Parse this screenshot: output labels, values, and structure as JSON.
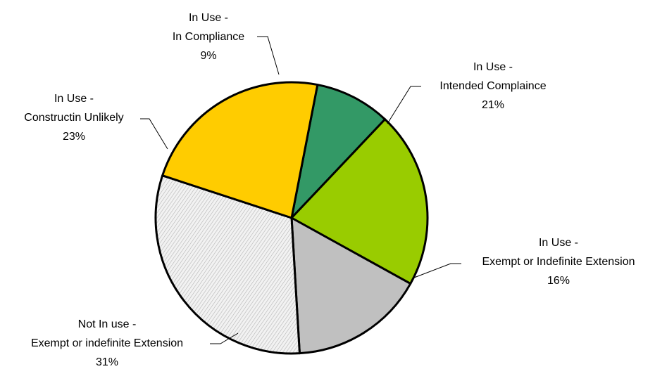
{
  "chart_data": {
    "type": "pie",
    "title": "",
    "slices": [
      {
        "label_lines": [
          "In Use -",
          "In Compliance"
        ],
        "pct_label": "9%",
        "value": 9,
        "color": "#339966",
        "pattern": "solid"
      },
      {
        "label_lines": [
          "In Use -",
          "Intended Complaince"
        ],
        "pct_label": "21%",
        "value": 21,
        "color": "#99CC00",
        "pattern": "solid"
      },
      {
        "label_lines": [
          "In Use -",
          "Exempt or Indefinite Extension"
        ],
        "pct_label": "16%",
        "value": 16,
        "color": "#C0C0C0",
        "pattern": "solid"
      },
      {
        "label_lines": [
          "Not In use -",
          "Exempt or indefinite Extension"
        ],
        "pct_label": "31%",
        "value": 31,
        "color": "#E6E6E6",
        "pattern": "hatched"
      },
      {
        "label_lines": [
          "In Use -",
          "Constructin Unlikely"
        ],
        "pct_label": "23%",
        "value": 23,
        "color": "#FFCC00",
        "pattern": "solid"
      }
    ]
  }
}
